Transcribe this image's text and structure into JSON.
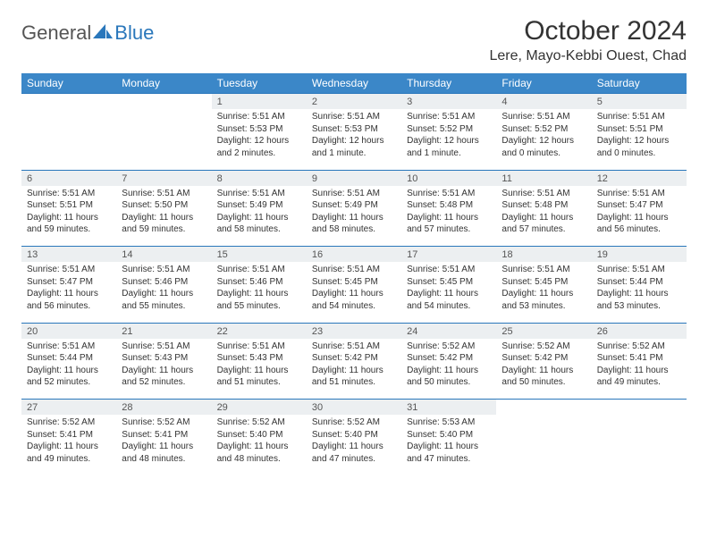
{
  "brand": {
    "text1": "General",
    "text2": "Blue",
    "accent_color": "#2a77bb"
  },
  "title": "October 2024",
  "location": "Lere, Mayo-Kebbi Ouest, Chad",
  "header_bg": "#3b87c8",
  "daynum_bg": "#eceff1",
  "border_color": "#2a77bb",
  "weekdays": [
    "Sunday",
    "Monday",
    "Tuesday",
    "Wednesday",
    "Thursday",
    "Friday",
    "Saturday"
  ],
  "weeks": [
    [
      null,
      null,
      {
        "n": "1",
        "sr": "Sunrise: 5:51 AM",
        "ss": "Sunset: 5:53 PM",
        "dl1": "Daylight: 12 hours",
        "dl2": "and 2 minutes."
      },
      {
        "n": "2",
        "sr": "Sunrise: 5:51 AM",
        "ss": "Sunset: 5:53 PM",
        "dl1": "Daylight: 12 hours",
        "dl2": "and 1 minute."
      },
      {
        "n": "3",
        "sr": "Sunrise: 5:51 AM",
        "ss": "Sunset: 5:52 PM",
        "dl1": "Daylight: 12 hours",
        "dl2": "and 1 minute."
      },
      {
        "n": "4",
        "sr": "Sunrise: 5:51 AM",
        "ss": "Sunset: 5:52 PM",
        "dl1": "Daylight: 12 hours",
        "dl2": "and 0 minutes."
      },
      {
        "n": "5",
        "sr": "Sunrise: 5:51 AM",
        "ss": "Sunset: 5:51 PM",
        "dl1": "Daylight: 12 hours",
        "dl2": "and 0 minutes."
      }
    ],
    [
      {
        "n": "6",
        "sr": "Sunrise: 5:51 AM",
        "ss": "Sunset: 5:51 PM",
        "dl1": "Daylight: 11 hours",
        "dl2": "and 59 minutes."
      },
      {
        "n": "7",
        "sr": "Sunrise: 5:51 AM",
        "ss": "Sunset: 5:50 PM",
        "dl1": "Daylight: 11 hours",
        "dl2": "and 59 minutes."
      },
      {
        "n": "8",
        "sr": "Sunrise: 5:51 AM",
        "ss": "Sunset: 5:49 PM",
        "dl1": "Daylight: 11 hours",
        "dl2": "and 58 minutes."
      },
      {
        "n": "9",
        "sr": "Sunrise: 5:51 AM",
        "ss": "Sunset: 5:49 PM",
        "dl1": "Daylight: 11 hours",
        "dl2": "and 58 minutes."
      },
      {
        "n": "10",
        "sr": "Sunrise: 5:51 AM",
        "ss": "Sunset: 5:48 PM",
        "dl1": "Daylight: 11 hours",
        "dl2": "and 57 minutes."
      },
      {
        "n": "11",
        "sr": "Sunrise: 5:51 AM",
        "ss": "Sunset: 5:48 PM",
        "dl1": "Daylight: 11 hours",
        "dl2": "and 57 minutes."
      },
      {
        "n": "12",
        "sr": "Sunrise: 5:51 AM",
        "ss": "Sunset: 5:47 PM",
        "dl1": "Daylight: 11 hours",
        "dl2": "and 56 minutes."
      }
    ],
    [
      {
        "n": "13",
        "sr": "Sunrise: 5:51 AM",
        "ss": "Sunset: 5:47 PM",
        "dl1": "Daylight: 11 hours",
        "dl2": "and 56 minutes."
      },
      {
        "n": "14",
        "sr": "Sunrise: 5:51 AM",
        "ss": "Sunset: 5:46 PM",
        "dl1": "Daylight: 11 hours",
        "dl2": "and 55 minutes."
      },
      {
        "n": "15",
        "sr": "Sunrise: 5:51 AM",
        "ss": "Sunset: 5:46 PM",
        "dl1": "Daylight: 11 hours",
        "dl2": "and 55 minutes."
      },
      {
        "n": "16",
        "sr": "Sunrise: 5:51 AM",
        "ss": "Sunset: 5:45 PM",
        "dl1": "Daylight: 11 hours",
        "dl2": "and 54 minutes."
      },
      {
        "n": "17",
        "sr": "Sunrise: 5:51 AM",
        "ss": "Sunset: 5:45 PM",
        "dl1": "Daylight: 11 hours",
        "dl2": "and 54 minutes."
      },
      {
        "n": "18",
        "sr": "Sunrise: 5:51 AM",
        "ss": "Sunset: 5:45 PM",
        "dl1": "Daylight: 11 hours",
        "dl2": "and 53 minutes."
      },
      {
        "n": "19",
        "sr": "Sunrise: 5:51 AM",
        "ss": "Sunset: 5:44 PM",
        "dl1": "Daylight: 11 hours",
        "dl2": "and 53 minutes."
      }
    ],
    [
      {
        "n": "20",
        "sr": "Sunrise: 5:51 AM",
        "ss": "Sunset: 5:44 PM",
        "dl1": "Daylight: 11 hours",
        "dl2": "and 52 minutes."
      },
      {
        "n": "21",
        "sr": "Sunrise: 5:51 AM",
        "ss": "Sunset: 5:43 PM",
        "dl1": "Daylight: 11 hours",
        "dl2": "and 52 minutes."
      },
      {
        "n": "22",
        "sr": "Sunrise: 5:51 AM",
        "ss": "Sunset: 5:43 PM",
        "dl1": "Daylight: 11 hours",
        "dl2": "and 51 minutes."
      },
      {
        "n": "23",
        "sr": "Sunrise: 5:51 AM",
        "ss": "Sunset: 5:42 PM",
        "dl1": "Daylight: 11 hours",
        "dl2": "and 51 minutes."
      },
      {
        "n": "24",
        "sr": "Sunrise: 5:52 AM",
        "ss": "Sunset: 5:42 PM",
        "dl1": "Daylight: 11 hours",
        "dl2": "and 50 minutes."
      },
      {
        "n": "25",
        "sr": "Sunrise: 5:52 AM",
        "ss": "Sunset: 5:42 PM",
        "dl1": "Daylight: 11 hours",
        "dl2": "and 50 minutes."
      },
      {
        "n": "26",
        "sr": "Sunrise: 5:52 AM",
        "ss": "Sunset: 5:41 PM",
        "dl1": "Daylight: 11 hours",
        "dl2": "and 49 minutes."
      }
    ],
    [
      {
        "n": "27",
        "sr": "Sunrise: 5:52 AM",
        "ss": "Sunset: 5:41 PM",
        "dl1": "Daylight: 11 hours",
        "dl2": "and 49 minutes."
      },
      {
        "n": "28",
        "sr": "Sunrise: 5:52 AM",
        "ss": "Sunset: 5:41 PM",
        "dl1": "Daylight: 11 hours",
        "dl2": "and 48 minutes."
      },
      {
        "n": "29",
        "sr": "Sunrise: 5:52 AM",
        "ss": "Sunset: 5:40 PM",
        "dl1": "Daylight: 11 hours",
        "dl2": "and 48 minutes."
      },
      {
        "n": "30",
        "sr": "Sunrise: 5:52 AM",
        "ss": "Sunset: 5:40 PM",
        "dl1": "Daylight: 11 hours",
        "dl2": "and 47 minutes."
      },
      {
        "n": "31",
        "sr": "Sunrise: 5:53 AM",
        "ss": "Sunset: 5:40 PM",
        "dl1": "Daylight: 11 hours",
        "dl2": "and 47 minutes."
      },
      null,
      null
    ]
  ]
}
